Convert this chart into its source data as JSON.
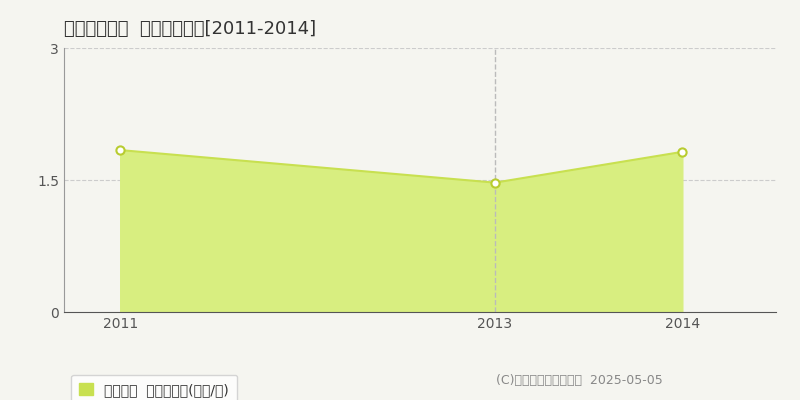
{
  "title": "むつ市宇田町  土地価格推移[2011-2014]",
  "years": [
    2011,
    2013,
    2014
  ],
  "values": [
    1.84,
    1.47,
    1.82
  ],
  "line_color": "#c8e050",
  "fill_color": "#d8ee80",
  "marker_color": "#ffffff",
  "marker_edge_color": "#b8cc30",
  "xlim": [
    2010.7,
    2014.5
  ],
  "ylim": [
    0,
    3.0
  ],
  "yticks": [
    0,
    1.5,
    3
  ],
  "xticks": [
    2011,
    2013,
    2014
  ],
  "vline_x": 2013,
  "vline_color": "#bbbbbb",
  "grid_color": "#cccccc",
  "background_color": "#f5f5f0",
  "plot_bg_color": "#f5f5f0",
  "legend_label": "土地価格  平均坪単価(万円/坪)",
  "legend_color": "#c8e050",
  "copyright_text": "(C)土地価格ドットコム  2025-05-05",
  "title_fontsize": 13,
  "tick_fontsize": 10,
  "legend_fontsize": 10,
  "copyright_fontsize": 9
}
